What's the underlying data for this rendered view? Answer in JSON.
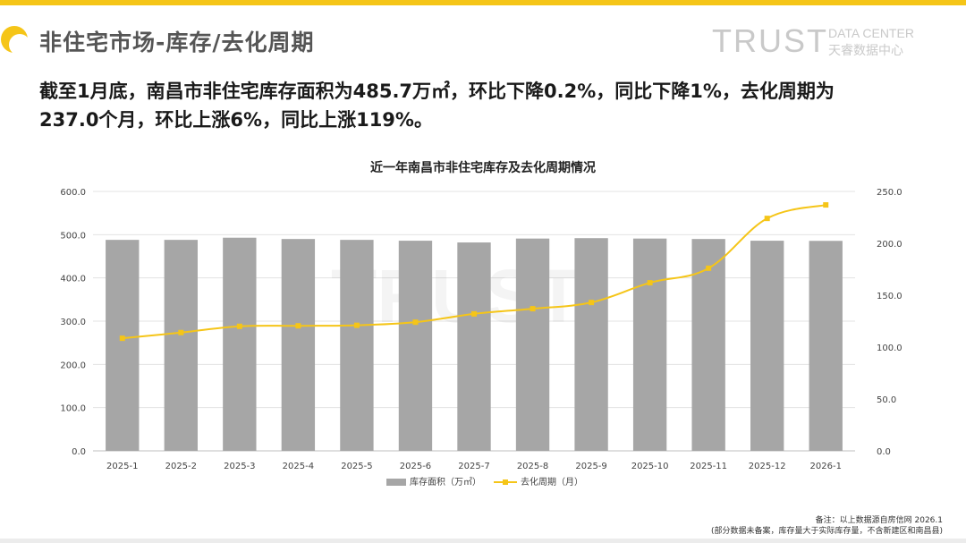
{
  "header": {
    "title": "非住宅市场-库存/去化周期",
    "brand": {
      "main": "TRUST",
      "sub_en": "DATA CENTER",
      "sub_cn": "天睿数据中心"
    }
  },
  "summary": {
    "line1": "截至1月底，南昌市非住宅库存面积为485.7万㎡，环比下降0.2%，同比下降1%，去化周期为",
    "line2": "237.0个月，环比上涨6%，同比上涨119%。"
  },
  "chart_data": {
    "type": "bar",
    "title": "近一年南昌市非住宅库存及去化周期情况",
    "categories": [
      "2025-1",
      "2025-2",
      "2025-3",
      "2025-4",
      "2025-5",
      "2025-6",
      "2025-7",
      "2025-8",
      "2025-9",
      "2025-10",
      "2025-11",
      "2025-12",
      "2026-1"
    ],
    "series": [
      {
        "name": "库存面积（万㎡）",
        "type": "bar",
        "axis": "left",
        "color": "#a6a6a6",
        "values": [
          488,
          488,
          493,
          490,
          488,
          486,
          482,
          491,
          492,
          491,
          490,
          486,
          485.7
        ]
      },
      {
        "name": "去化周期（月）",
        "type": "line",
        "axis": "right",
        "color": "#f5c518",
        "values": [
          108.5,
          114,
          120,
          120.5,
          121,
          124,
          132,
          137,
          143,
          162,
          176,
          224,
          237.0
        ]
      }
    ],
    "y_left": {
      "min": 0,
      "max": 600,
      "ticks": [
        "0.0",
        "100.0",
        "200.0",
        "300.0",
        "400.0",
        "500.0",
        "600.0"
      ]
    },
    "y_right": {
      "min": 0,
      "max": 250,
      "ticks": [
        "0.0",
        "50.0",
        "100.0",
        "150.0",
        "200.0",
        "250.0"
      ]
    },
    "legend_position": "bottom"
  },
  "footnote": {
    "line1": "备注：以上数据源自房信网   2026.1",
    "line2": "(部分数据未备案，库存量大于实际库存量，不含新建区和南昌县)"
  }
}
